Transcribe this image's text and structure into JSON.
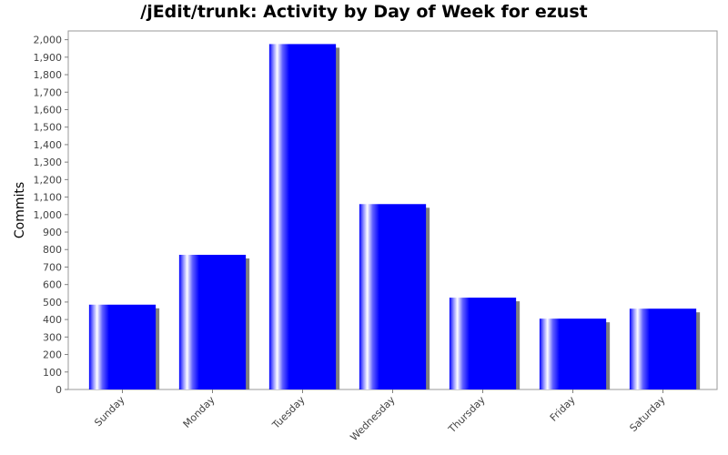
{
  "chart_data": {
    "type": "bar",
    "title": "/jEdit/trunk: Activity by Day of Week for ezust",
    "xlabel": "",
    "ylabel": "Commits",
    "categories": [
      "Sunday",
      "Monday",
      "Tuesday",
      "Wednesday",
      "Thursday",
      "Friday",
      "Saturday"
    ],
    "values": [
      485,
      770,
      1975,
      1060,
      525,
      405,
      462
    ],
    "ylim": [
      0,
      2050
    ],
    "yticks": [
      "0",
      "100",
      "200",
      "300",
      "400",
      "500",
      "600",
      "700",
      "800",
      "900",
      "1,000",
      "1,100",
      "1,200",
      "1,300",
      "1,400",
      "1,500",
      "1,600",
      "1,700",
      "1,800",
      "1,900",
      "2,000"
    ],
    "grid": false,
    "legend": "none",
    "colors": {
      "bar": "#0000ff",
      "bar_highlight": "#ffffff",
      "bar_shadow": "#808080",
      "plot_border": "#808080"
    }
  }
}
